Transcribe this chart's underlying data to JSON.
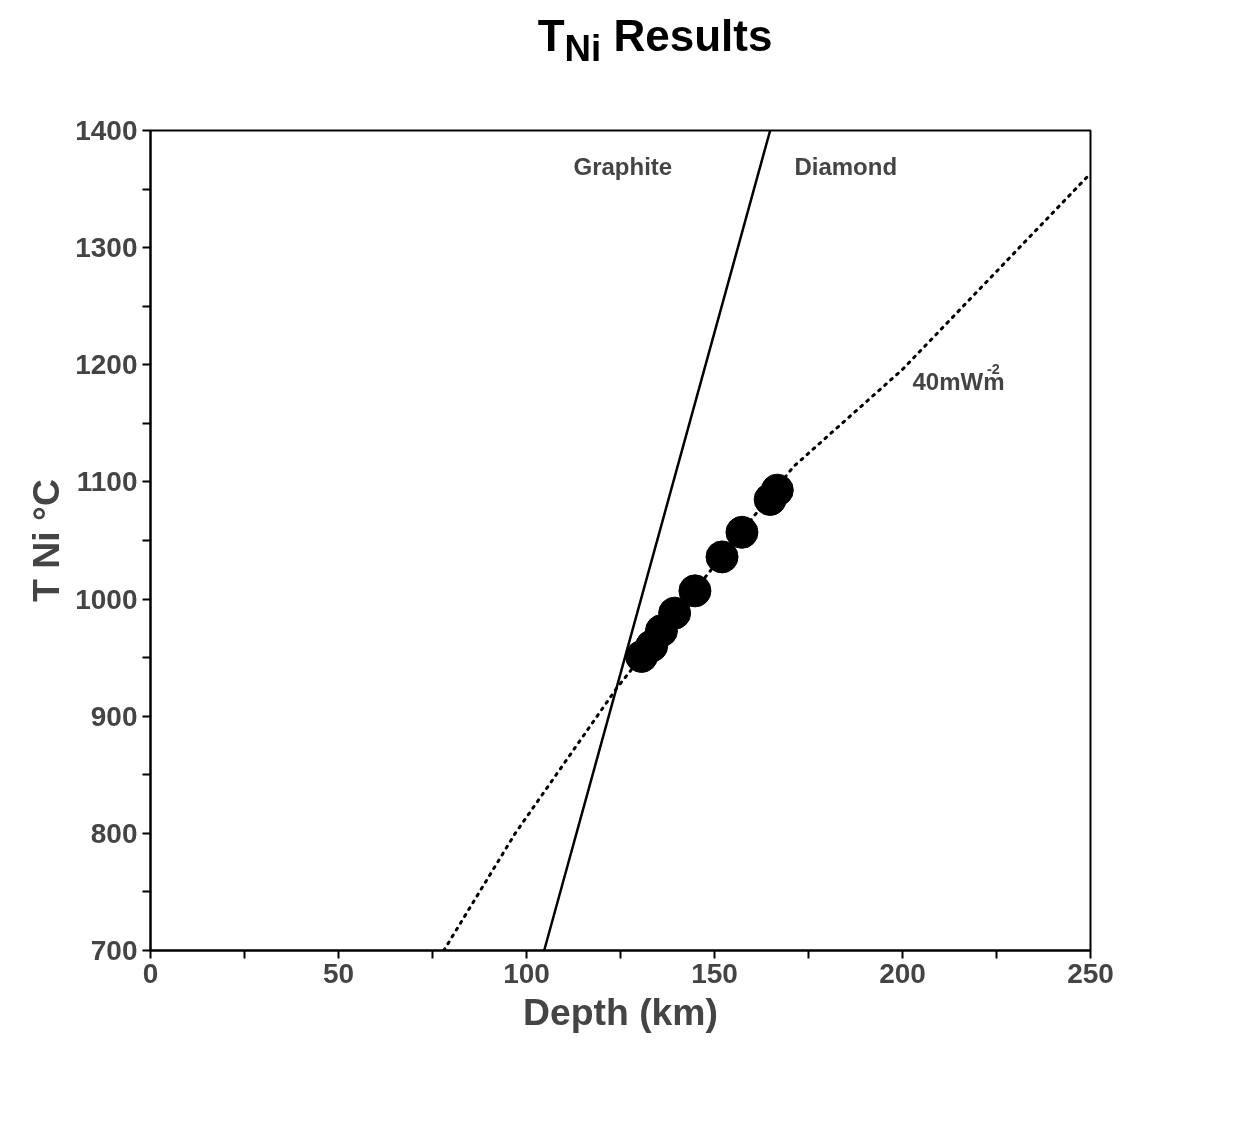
{
  "chart_data": {
    "type": "scatter",
    "title": "T$_{Ni}$ Results",
    "xlabel": "Depth (km)",
    "ylabel": "T Ni °C",
    "xlim": [
      0,
      250
    ],
    "ylim": [
      700,
      1400
    ],
    "xticks": [
      0,
      {
        "value": 25,
        "label": null
      },
      50,
      {
        "value": 75,
        "label": null
      },
      100,
      {
        "value": 125,
        "label": null
      },
      150,
      {
        "value": 175,
        "label": null
      },
      200,
      {
        "value": 225,
        "label": null
      },
      250
    ],
    "yticks": [
      700,
      {
        "value": 750,
        "label": null
      },
      800,
      {
        "value": 850,
        "label": null
      },
      900,
      {
        "value": 950,
        "label": null
      },
      1000,
      {
        "value": 1050,
        "label": null
      },
      1100,
      {
        "value": 1150,
        "label": null
      },
      1200,
      {
        "value": 1250,
        "label": null
      },
      1300,
      {
        "value": 1350,
        "label": null
      },
      1400
    ],
    "grid": false,
    "marker": "circle",
    "series": [
      {
        "type": "line",
        "color": "#000000",
        "line_style": "solid",
        "marker": "none",
        "x": [
          104.7,
          164.8
        ],
        "values": [
          700,
          1400
        ]
      },
      {
        "type": "line",
        "name": "40mWm$^{-2}$",
        "color": "#000000",
        "line_style": "dotted",
        "marker": "none",
        "x": [
          78,
          97,
          124,
          171,
          200,
          249
        ],
        "values": [
          700,
          800,
          924,
          1113,
          1196,
          1360
        ]
      },
      {
        "color": "#000000",
        "x": [
          166.7,
          164.8,
          157.3,
          152.0,
          144.8,
          139.4,
          135.9,
          133.3,
          130.6
        ],
        "values": [
          1093,
          1085,
          1057,
          1036,
          1007,
          988,
          973,
          960,
          951
        ]
      }
    ],
    "annotations": [
      "Graphite",
      "Diamond"
    ]
  }
}
